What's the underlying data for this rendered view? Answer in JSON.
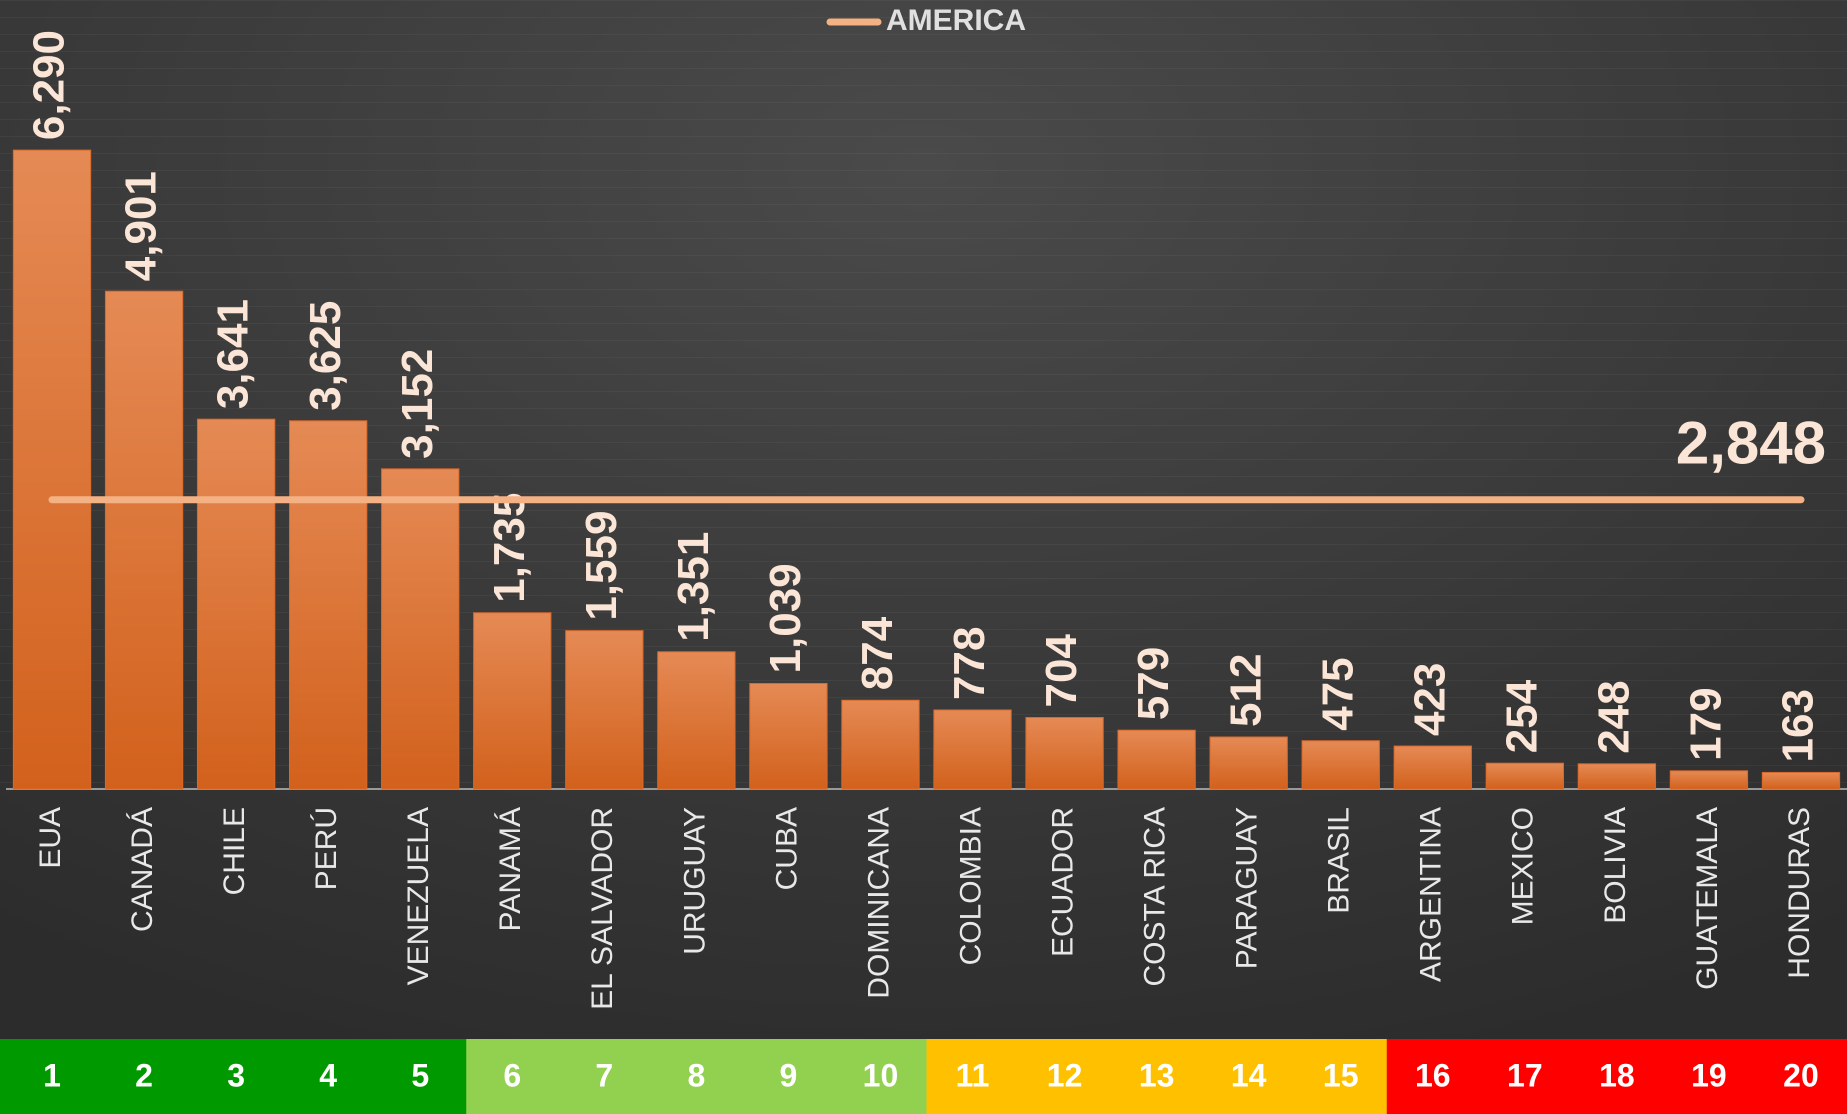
{
  "chart_data": {
    "type": "bar",
    "categories": [
      "EUA",
      "CANADÁ",
      "CHILE",
      "PERÚ",
      "VENEZUELA",
      "PANAMÁ",
      "EL SALVADOR",
      "URUGUAY",
      "CUBA",
      "DOMINICANA",
      "COLOMBIA",
      "ECUADOR",
      "COSTA RICA",
      "PARAGUAY",
      "BRASIL",
      "ARGENTINA",
      "MEXICO",
      "BOLIVIA",
      "GUATEMALA",
      "HONDURAS"
    ],
    "values": [
      6290,
      4901,
      3641,
      3625,
      3152,
      1735,
      1559,
      1351,
      1039,
      874,
      778,
      704,
      579,
      512,
      475,
      423,
      254,
      248,
      179,
      163
    ],
    "value_labels": [
      "6,290",
      "4,901",
      "3,641",
      "3,625",
      "3,152",
      "1,735",
      "1,559",
      "1,351",
      "1,039",
      "874",
      "778",
      "704",
      "579",
      "512",
      "475",
      "423",
      "254",
      "248",
      "179",
      "163"
    ],
    "color": "#d9692a",
    "ylim": [
      0,
      7000
    ],
    "reference_line": {
      "name": "AMERICA",
      "value": 2848,
      "value_label": "2,848",
      "color": "#f4b183"
    },
    "ranks": {
      "values": [
        1,
        2,
        3,
        4,
        5,
        6,
        7,
        8,
        9,
        10,
        11,
        12,
        13,
        14,
        15,
        16,
        17,
        18,
        19,
        20
      ],
      "colors": [
        "#009a00",
        "#009a00",
        "#009a00",
        "#009a00",
        "#009a00",
        "#92d050",
        "#92d050",
        "#92d050",
        "#92d050",
        "#92d050",
        "#ffc000",
        "#ffc000",
        "#ffc000",
        "#ffc000",
        "#ffc000",
        "#ff0000",
        "#ff0000",
        "#ff0000",
        "#ff0000",
        "#ff0000"
      ]
    }
  }
}
